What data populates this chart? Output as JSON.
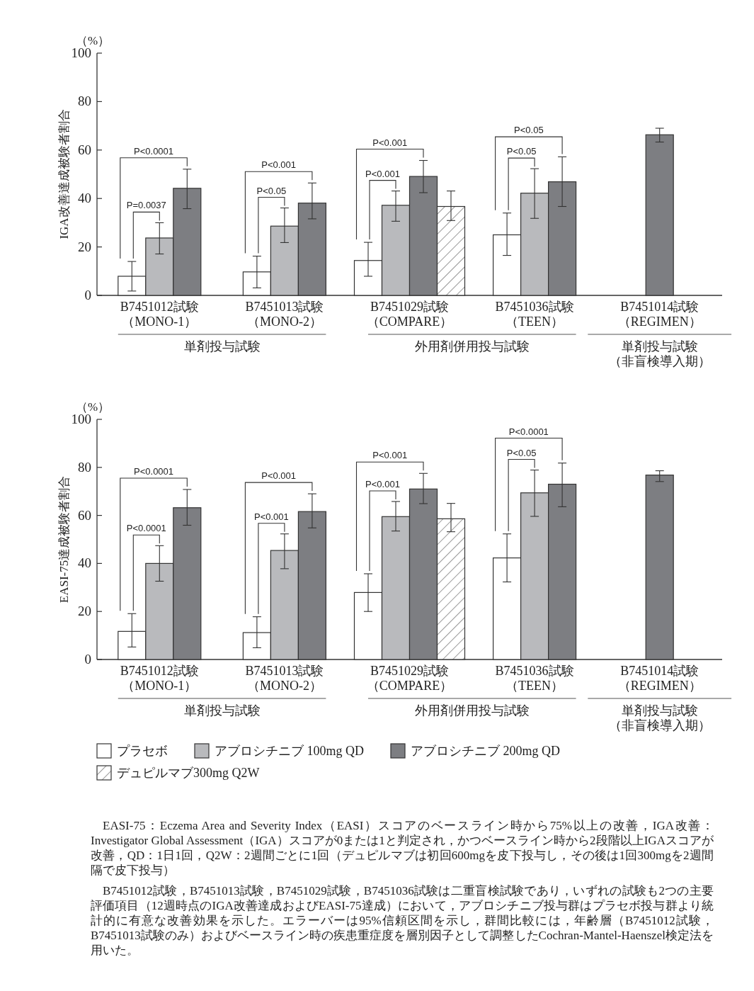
{
  "chart_data": [
    {
      "type": "bar",
      "ylabel": "IGA改善達成被験者割合",
      "categories": [
        "B7451012試験（MONO-1）",
        "B7451013試験（MONO-2）",
        "B7451029試験（COMPARE）",
        "B7451036試験（TEEN）",
        "B7451014試験（REGIMEN）"
      ],
      "ylim": [
        0,
        100
      ],
      "yticks": [
        0,
        20,
        40,
        60,
        80,
        100
      ],
      "series": [
        {
          "color": "#ffffff",
          "values": [
            7.9,
            9.7,
            14.4,
            25.0,
            null
          ],
          "errors": [
            [
              1.8,
              14.0
            ],
            [
              3.1,
              16.2
            ],
            [
              7.9,
              21.9
            ],
            [
              16.5,
              34.0
            ],
            null
          ]
        },
        {
          "color": "#b9babd",
          "values": [
            23.7,
            28.6,
            37.2,
            42.2,
            null
          ],
          "errors": [
            [
              17.1,
              30.0
            ],
            [
              21.8,
              36.1
            ],
            [
              30.6,
              43.1
            ],
            [
              31.8,
              52.3
            ],
            null
          ]
        },
        {
          "color": "#7d7e82",
          "values": [
            44.2,
            38.1,
            49.1,
            46.9,
            66.3
          ],
          "errors": [
            [
              35.8,
              52.1
            ],
            [
              31.6,
              46.4
            ],
            [
              42.4,
              55.7
            ],
            [
              36.7,
              57.2
            ],
            [
              63.3,
              69.0
            ]
          ]
        },
        {
          "color": "#ffffff",
          "values": [
            null,
            null,
            36.7,
            null,
            null
          ],
          "errors": [
            null,
            null,
            [
              30.9,
              43.1
            ],
            null,
            null
          ]
        }
      ],
      "annotations": [
        "（%）",
        "単剤投与試験",
        "外用剤併用投与試験",
        "単剤投与試験（非盲検導入期）",
        {
          "text": "P=0.0037",
          "x": "B7451012試験（MONO-1）",
          "y": 30.0
        },
        "P<0.0001",
        {
          "text": "P<0.05",
          "x": "B7451013試験（MONO-2）",
          "y": 36.1
        },
        "P<0.001",
        {
          "text": "P<0.001",
          "x": "B7451029試験（COMPARE）",
          "y": 43.1
        },
        "P<0.001",
        {
          "text": "P<0.05",
          "x": "B7451036試験（TEEN）",
          "y": 52.3
        },
        "P<0.05"
      ]
    },
    {
      "type": "bar",
      "ylabel": "EASI-75達成被験者割合",
      "categories": [
        "B7451012試験（MONO-1）",
        "B7451013試験（MONO-2）",
        "B7451029試験（COMPARE）",
        "B7451036試験（TEEN）",
        "B7451014試験（REGIMEN）"
      ],
      "ylim": [
        0,
        100
      ],
      "yticks": [
        0,
        20,
        40,
        60,
        80,
        100
      ],
      "legend": "bottom",
      "series": [
        {
          "name": "プラセボ",
          "color": "#ffffff",
          "values": [
            11.7,
            11.2,
            27.9,
            42.3,
            null
          ],
          "errors": [
            [
              5.2,
              19.1
            ],
            [
              4.9,
              17.8
            ],
            [
              20.0,
              35.7
            ],
            [
              32.3,
              52.3
            ],
            null
          ]
        },
        {
          "name": "アブロシチニブ 100mg QD",
          "color": "#b9babd",
          "values": [
            40.0,
            45.4,
            59.5,
            69.4,
            null
          ],
          "errors": [
            [
              32.6,
              47.4
            ],
            [
              37.8,
              52.3
            ],
            [
              53.5,
              65.8
            ],
            [
              59.6,
              78.9
            ],
            null
          ]
        },
        {
          "name": "アブロシチニブ 200mg QD",
          "color": "#7d7e82",
          "values": [
            63.2,
            61.6,
            71.0,
            73.0,
            76.8
          ],
          "errors": [
            [
              55.9,
              70.8
            ],
            [
              54.8,
              69.0
            ],
            [
              64.9,
              77.5
            ],
            [
              63.6,
              81.8
            ],
            [
              74.1,
              78.6
            ]
          ]
        },
        {
          "name": "デュピルマブ300mg Q2W",
          "color": "#ffffff",
          "values": [
            null,
            null,
            58.6,
            null,
            null
          ],
          "errors": [
            null,
            null,
            [
              53.2,
              65.0
            ],
            null,
            null
          ]
        }
      ],
      "annotations": [
        "（%）",
        "単剤投与試験",
        "外用剤併用投与試験",
        "単剤投与試験（非盲検導入期）",
        {
          "text": "P<0.0001",
          "x": "B7451012試験（MONO-1）",
          "y": 47.4
        },
        "P<0.0001",
        {
          "text": "P<0.001",
          "x": "B7451013試験（MONO-2）",
          "y": 52.3
        },
        "P<0.001",
        {
          "text": "P<0.001",
          "x": "B7451029試験（COMPARE）",
          "y": 65.8
        },
        "P<0.001",
        {
          "text": "P<0.05",
          "x": "B7451036試験（TEEN）",
          "y": 78.9
        },
        "P<0.0001",
        "EASI-75：Eczema Area and Severity Index（EASI）スコアのベースライン時から75%以上の改善，IGA改善：Investigator Global Assessment（IGA）スコアが0または1と判定され，かつベースライン時から2段階以上IGAスコアが改善，QD：1日1回，Q2W：2週間ごとに1回（デュピルマブは初回600mgを皮下投与し，その後は1回300mgを2週間隔で皮下投与）",
        "B7451012試験，B7451013試験，B7451029試験，B7451036試験は二重盲検試験であり，いずれの試験も2つの主要評価項目（12週時点のIGA改善達成およびEASI-75達成）において，アブロシチニブ投与群はプラセボ投与群より統計的に有意な改善効果を示した。エラーバーは95%信頼区間を示し，群間比較には，年齢層（B7451012試験，B7451013試験のみ）およびベースライン時の疾患重症度を層別因子として調整したCochran-Mantel-Haenszel検定法を用いた。"
      ]
    }
  ]
}
